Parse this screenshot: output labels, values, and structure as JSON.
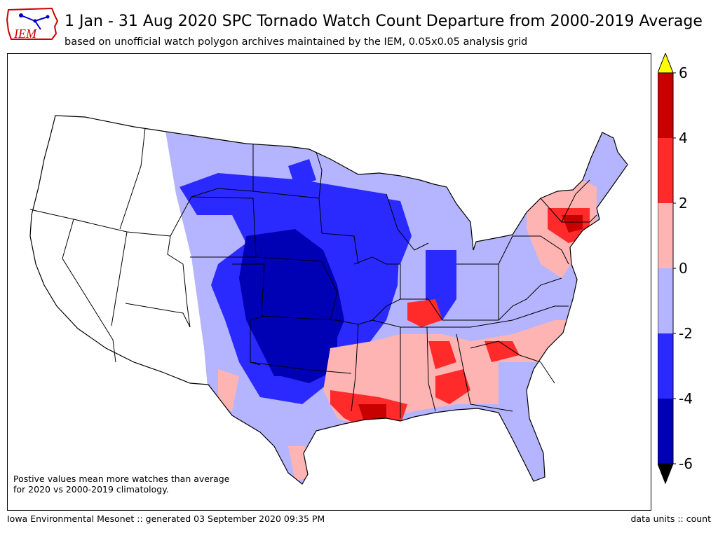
{
  "header": {
    "logo_text": "IEM",
    "title": "1 Jan - 31 Aug 2020 SPC Tornado Watch Count Departure from 2000-2019 Average",
    "subtitle": "based on unofficial watch polygon archives maintained by the IEM, 0.05x0.05 analysis grid"
  },
  "map": {
    "note_line1": "Postive values mean more watches than average",
    "note_line2": "for 2020 vs 2000-2019 climatology."
  },
  "colorbar": {
    "levels": [
      6,
      4,
      2,
      0,
      -2,
      -4,
      -6
    ],
    "labels": [
      "6",
      "4",
      "2",
      "0",
      "-2",
      "-4",
      "-6"
    ],
    "colors": {
      "over": "#ffff00",
      "4_6": "#c80000",
      "2_4": "#ff2a2a",
      "0_2": "#ffb4b4",
      "m2_0": "#b4b4ff",
      "m4_m2": "#2a2aff",
      "m6_m4": "#0000b4",
      "under": "#000000"
    }
  },
  "footer": {
    "left": "Iowa Environmental Mesonet :: generated 03 September 2020 09:35 PM",
    "right": "data units :: count"
  }
}
